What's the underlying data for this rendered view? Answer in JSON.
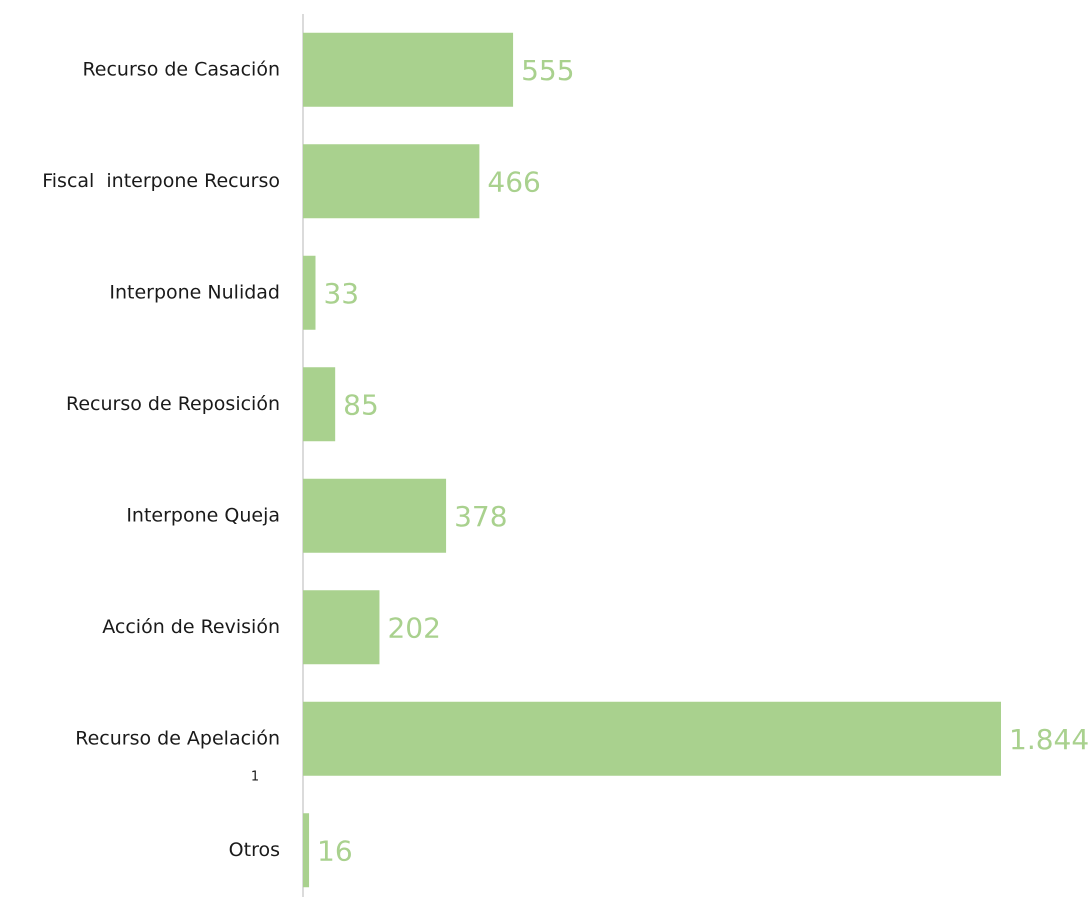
{
  "chart_data": {
    "type": "bar",
    "orientation": "horizontal",
    "categories": [
      "Recurso de Casación",
      "Fiscal  interpone Recurso",
      "Interpone Nulidad",
      "Recurso de Reposición",
      "Interpone Queja",
      "Acción de Revisión",
      "Recurso de Apelación",
      "Otros"
    ],
    "values": [
      555,
      466,
      33,
      85,
      378,
      202,
      1844,
      16
    ],
    "value_labels": [
      "555",
      "466",
      "33",
      "85",
      "378",
      "202",
      "1.844",
      "16"
    ],
    "color": "#a9d18e",
    "annotations": [
      {
        "text": "1",
        "category_index": 6
      }
    ]
  }
}
